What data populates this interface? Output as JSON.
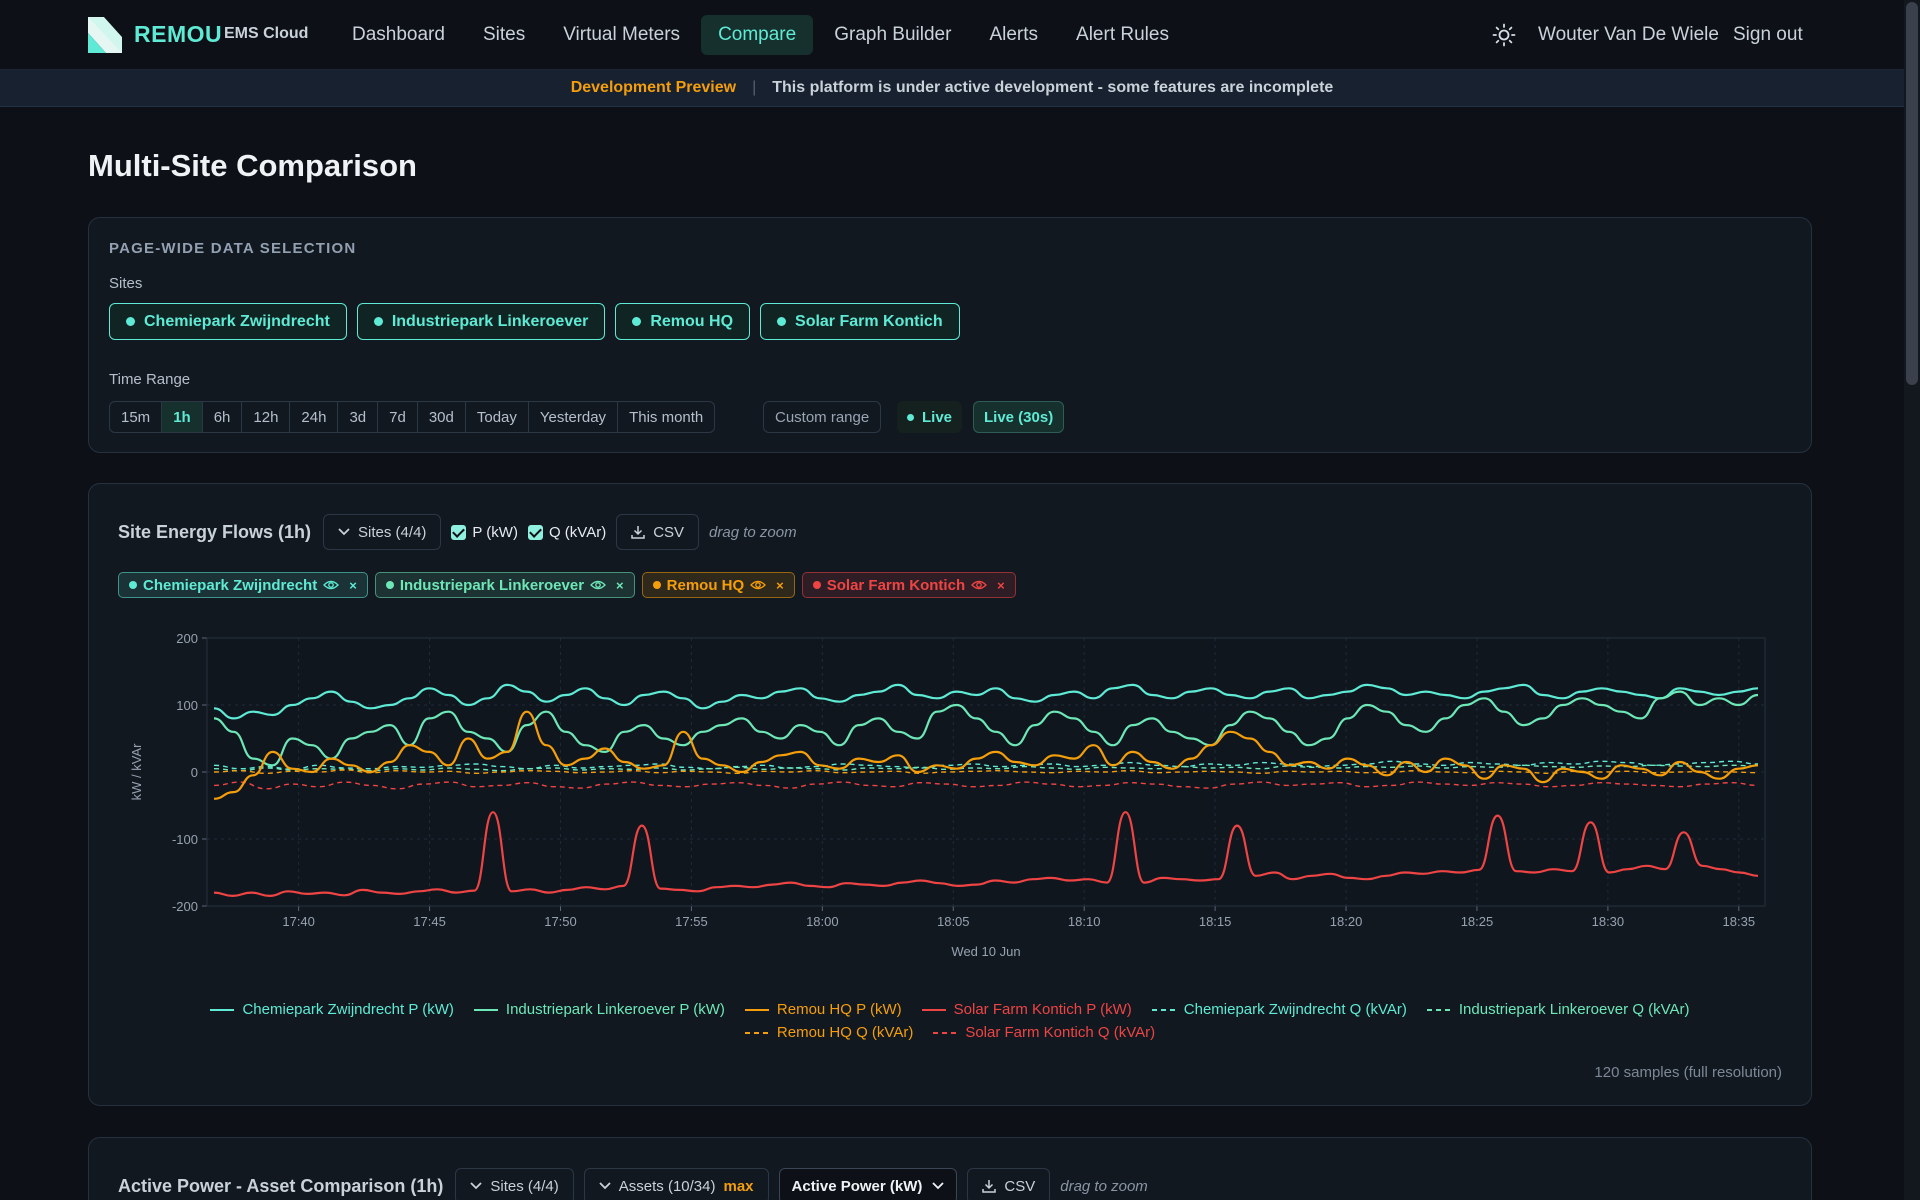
{
  "nav": {
    "brand": "REMOU",
    "brand_sub": "EMS Cloud",
    "links": [
      "Dashboard",
      "Sites",
      "Virtual Meters",
      "Compare",
      "Graph Builder",
      "Alerts",
      "Alert Rules"
    ],
    "active": "Compare",
    "user": "Wouter Van De Wiele",
    "signout": "Sign out"
  },
  "banner": {
    "tag": "Development Preview",
    "sep": "|",
    "message": "This platform is under active development - some features are incomplete"
  },
  "page_title": "Multi-Site Comparison",
  "selection": {
    "section_label": "PAGE-WIDE DATA SELECTION",
    "sites_label": "Sites",
    "sites": [
      "Chemiepark Zwijndrecht",
      "Industriepark Linkeroever",
      "Remou HQ",
      "Solar Farm Kontich"
    ],
    "time_label": "Time Range",
    "ranges": [
      "15m",
      "1h",
      "6h",
      "12h",
      "24h",
      "3d",
      "7d",
      "30d",
      "Today",
      "Yesterday",
      "This month"
    ],
    "active_range": "1h",
    "custom": "Custom range",
    "live": "Live",
    "live_interval": "Live (30s)"
  },
  "energy_chart": {
    "title": "Site Energy Flows (1h)",
    "sites_btn": "Sites (4/4)",
    "p_label": "P (kW)",
    "q_label": "Q (kVAr)",
    "csv": "CSV",
    "hint": "drag to zoom",
    "chips": [
      {
        "label": "Chemiepark Zwijndrecht",
        "color": "#5eead4"
      },
      {
        "label": "Industriepark Linkeroever",
        "color": "#6ee7b7"
      },
      {
        "label": "Remou HQ",
        "color": "#f59e0b"
      },
      {
        "label": "Solar Farm Kontich",
        "color": "#ef4444"
      }
    ],
    "samples": "120 samples (full resolution)"
  },
  "chart_data": {
    "type": "line",
    "ylabel": "kW / kVAr",
    "xlabel": "Wed 10 Jun",
    "ylim": [
      -200,
      200
    ],
    "yticks": [
      "200",
      "100",
      "0",
      "-100",
      "-200"
    ],
    "xticks": [
      "17:40",
      "17:45",
      "17:50",
      "17:55",
      "18:00",
      "18:05",
      "18:10",
      "18:15",
      "18:20",
      "18:25",
      "18:30",
      "18:35"
    ],
    "x_start": "17:36:30",
    "x_end": "18:36:00",
    "grid": true,
    "legend_position": "bottom",
    "series": [
      {
        "name": "Chemiepark Zwijndrecht P (kW)",
        "color": "#5eead4",
        "dash": false,
        "values": [
          95,
          80,
          90,
          85,
          100,
          110,
          120,
          105,
          95,
          100,
          110,
          125,
          115,
          100,
          110,
          130,
          120,
          105,
          115,
          125,
          110,
          100,
          115,
          120,
          110,
          95,
          105,
          115,
          110,
          120,
          125,
          110,
          105,
          115,
          120,
          130,
          115,
          110,
          120,
          115,
          125,
          110,
          105,
          115,
          120,
          110,
          125,
          130,
          115,
          110,
          120,
          125,
          115,
          110,
          120,
          125,
          110,
          115,
          120,
          130,
          125,
          115,
          120,
          115,
          110,
          120,
          125,
          130,
          115,
          110,
          120,
          125,
          120,
          115,
          110,
          125,
          120,
          115,
          120,
          125
        ]
      },
      {
        "name": "Industriepark Linkeroever P (kW)",
        "color": "#6ee7b7",
        "dash": false,
        "values": [
          80,
          60,
          20,
          10,
          50,
          40,
          20,
          50,
          60,
          70,
          40,
          80,
          90,
          60,
          50,
          30,
          70,
          90,
          60,
          40,
          30,
          60,
          70,
          50,
          40,
          60,
          70,
          80,
          60,
          50,
          70,
          60,
          40,
          70,
          80,
          60,
          50,
          90,
          100,
          80,
          60,
          40,
          70,
          90,
          80,
          60,
          40,
          70,
          80,
          60,
          50,
          40,
          70,
          90,
          80,
          60,
          40,
          50,
          80,
          100,
          90,
          70,
          60,
          80,
          100,
          110,
          90,
          70,
          80,
          100,
          110,
          100,
          90,
          80,
          110,
          120,
          100,
          110,
          100,
          115
        ]
      },
      {
        "name": "Remou HQ P (kW)",
        "color": "#f59e0b",
        "dash": false,
        "values": [
          -40,
          -30,
          -5,
          30,
          5,
          0,
          20,
          10,
          0,
          15,
          40,
          30,
          10,
          50,
          20,
          30,
          90,
          40,
          10,
          20,
          35,
          15,
          5,
          10,
          60,
          20,
          10,
          0,
          15,
          25,
          30,
          10,
          5,
          20,
          15,
          25,
          0,
          10,
          5,
          20,
          30,
          15,
          10,
          25,
          20,
          40,
          10,
          30,
          15,
          5,
          20,
          40,
          60,
          50,
          30,
          10,
          15,
          5,
          20,
          10,
          -5,
          15,
          0,
          20,
          10,
          -10,
          10,
          5,
          -15,
          5,
          0,
          -10,
          10,
          5,
          -5,
          15,
          0,
          -10,
          5,
          10
        ]
      },
      {
        "name": "Solar Farm Kontich P (kW)",
        "color": "#ef4444",
        "dash": false,
        "values": [
          -180,
          -185,
          -180,
          -185,
          -178,
          -182,
          -180,
          -184,
          -176,
          -180,
          -182,
          -178,
          -175,
          -180,
          -177,
          -60,
          -178,
          -175,
          -180,
          -176,
          -172,
          -175,
          -170,
          -80,
          -174,
          -176,
          -178,
          -172,
          -170,
          -172,
          -168,
          -165,
          -170,
          -172,
          -166,
          -168,
          -170,
          -165,
          -162,
          -166,
          -170,
          -168,
          -162,
          -165,
          -160,
          -158,
          -162,
          -160,
          -165,
          -60,
          -165,
          -158,
          -160,
          -162,
          -160,
          -80,
          -155,
          -150,
          -160,
          -155,
          -152,
          -158,
          -160,
          -155,
          -150,
          -152,
          -148,
          -150,
          -146,
          -65,
          -148,
          -150,
          -145,
          -148,
          -75,
          -150,
          -145,
          -140,
          -145,
          -90,
          -140,
          -145,
          -150,
          -155
        ]
      },
      {
        "name": "Chemiepark Zwijndrecht Q (kVAr)",
        "color": "#5eead4",
        "dash": true,
        "values": [
          10,
          5,
          8,
          4,
          10,
          6,
          5,
          8,
          7,
          10,
          12,
          8,
          5,
          10,
          6,
          8,
          10,
          12,
          7,
          5,
          8,
          10,
          6,
          8,
          12,
          10,
          8,
          6,
          10,
          12,
          8,
          10,
          12,
          8,
          10,
          14,
          10,
          8,
          12,
          10,
          14,
          12,
          8,
          10,
          12,
          16,
          12,
          10,
          14,
          12,
          10,
          14,
          12,
          16,
          14,
          10,
          12,
          14,
          16,
          12
        ]
      },
      {
        "name": "Industriepark Linkeroever Q (kVAr)",
        "color": "#6ee7b7",
        "dash": true,
        "values": [
          5,
          2,
          6,
          3,
          5,
          4,
          2,
          5,
          3,
          6,
          4,
          2,
          5,
          6,
          3,
          5,
          4,
          6,
          3,
          5,
          7,
          4,
          6,
          5,
          3,
          6,
          5,
          7,
          4,
          6,
          5,
          8,
          6,
          4,
          7,
          6,
          5,
          8,
          6,
          7,
          5,
          9,
          7,
          6,
          8,
          7,
          9,
          6,
          8,
          7,
          10,
          8,
          7,
          9,
          8,
          10,
          9,
          8,
          10,
          9
        ]
      },
      {
        "name": "Remou HQ Q (kVAr)",
        "color": "#f59e0b",
        "dash": true,
        "values": [
          0,
          2,
          -2,
          1,
          0,
          3,
          -1,
          2,
          0,
          1,
          -2,
          0,
          2,
          1,
          -1,
          0,
          2,
          -1,
          1,
          0,
          -2,
          1,
          0,
          2,
          -1,
          0,
          1,
          -2,
          0,
          1,
          2,
          0,
          -1,
          1,
          0,
          2,
          -1,
          0,
          1,
          0,
          -2,
          1,
          0,
          1,
          -1,
          0,
          2,
          0,
          -1,
          1,
          0,
          -2,
          1,
          0,
          1,
          -1,
          0,
          1,
          0,
          -1
        ]
      },
      {
        "name": "Solar Farm Kontich Q (kVAr)",
        "color": "#ef4444",
        "dash": true,
        "values": [
          -20,
          -15,
          -25,
          -18,
          -22,
          -15,
          -20,
          -25,
          -18,
          -15,
          -22,
          -20,
          -16,
          -22,
          -24,
          -18,
          -15,
          -20,
          -22,
          -18,
          -16,
          -20,
          -24,
          -18,
          -15,
          -20,
          -22,
          -16,
          -18,
          -22,
          -20,
          -15,
          -18,
          -22,
          -20,
          -16,
          -18,
          -22,
          -24,
          -18,
          -15,
          -20,
          -18,
          -16,
          -22,
          -20,
          -15,
          -18,
          -20,
          -16,
          -18,
          -22,
          -20,
          -16,
          -18,
          -20,
          -22,
          -18,
          -16,
          -20
        ]
      }
    ]
  },
  "asset_chart": {
    "title": "Active Power - Asset Comparison (1h)",
    "sites_btn": "Sites (4/4)",
    "assets_btn": "Assets (10/34)",
    "max": "max",
    "metric": "Active Power (kW)",
    "csv": "CSV",
    "hint": "drag to zoom"
  }
}
